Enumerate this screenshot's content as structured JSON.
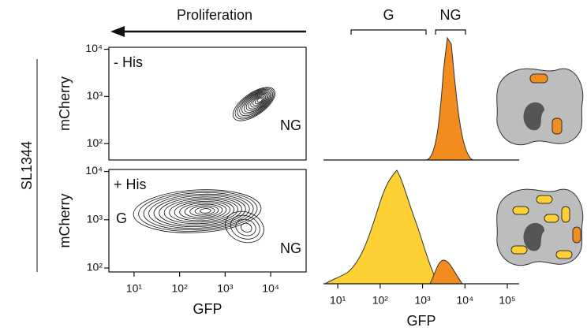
{
  "annotations": {
    "arrow_label": "Proliferation",
    "strain": "SL1344"
  },
  "chart_data": [
    {
      "type": "contour",
      "ylabel": "mCherry",
      "annotation": "- His",
      "population_labels": [
        "NG"
      ],
      "log_x": true,
      "log_y": true,
      "xlim": [
        2.8,
        60000
      ],
      "ylim": [
        45,
        11000
      ],
      "yticks": [
        {
          "value": 100,
          "label": "10²"
        },
        {
          "value": 1000,
          "label": "10³"
        },
        {
          "value": 10000,
          "label": "10⁴"
        }
      ]
    },
    {
      "type": "contour",
      "ylabel": "mCherry",
      "xlabel": "GFP",
      "annotation": "+ His",
      "population_labels": [
        "G",
        "NG"
      ],
      "log_x": true,
      "log_y": true,
      "xlim": [
        2.8,
        60000
      ],
      "ylim": [
        83,
        11000
      ],
      "xticks": [
        {
          "value": 10,
          "label": "10¹"
        },
        {
          "value": 100,
          "label": "10²"
        },
        {
          "value": 1000,
          "label": "10³"
        },
        {
          "value": 10000,
          "label": "10⁴"
        }
      ],
      "yticks": [
        {
          "value": 100,
          "label": "10²"
        },
        {
          "value": 1000,
          "label": "10³"
        },
        {
          "value": 10000,
          "label": "10⁴"
        }
      ]
    },
    {
      "type": "histogram",
      "log_x": true,
      "xlim": [
        4.6,
        190000
      ],
      "gate_labels": [
        "G",
        "NG"
      ],
      "color": "#f28c1e"
    },
    {
      "type": "histogram",
      "xlabel": "GFP",
      "log_x": true,
      "xlim": [
        4.6,
        190000
      ],
      "colors": [
        "#fdd034",
        "#f28c1e"
      ],
      "xticks": [
        {
          "value": 10,
          "label": "10¹"
        },
        {
          "value": 100,
          "label": "10²"
        },
        {
          "value": 1000,
          "label": "10³"
        },
        {
          "value": 10000,
          "label": "10⁴"
        },
        {
          "value": 100000,
          "label": "10⁵"
        }
      ]
    }
  ]
}
